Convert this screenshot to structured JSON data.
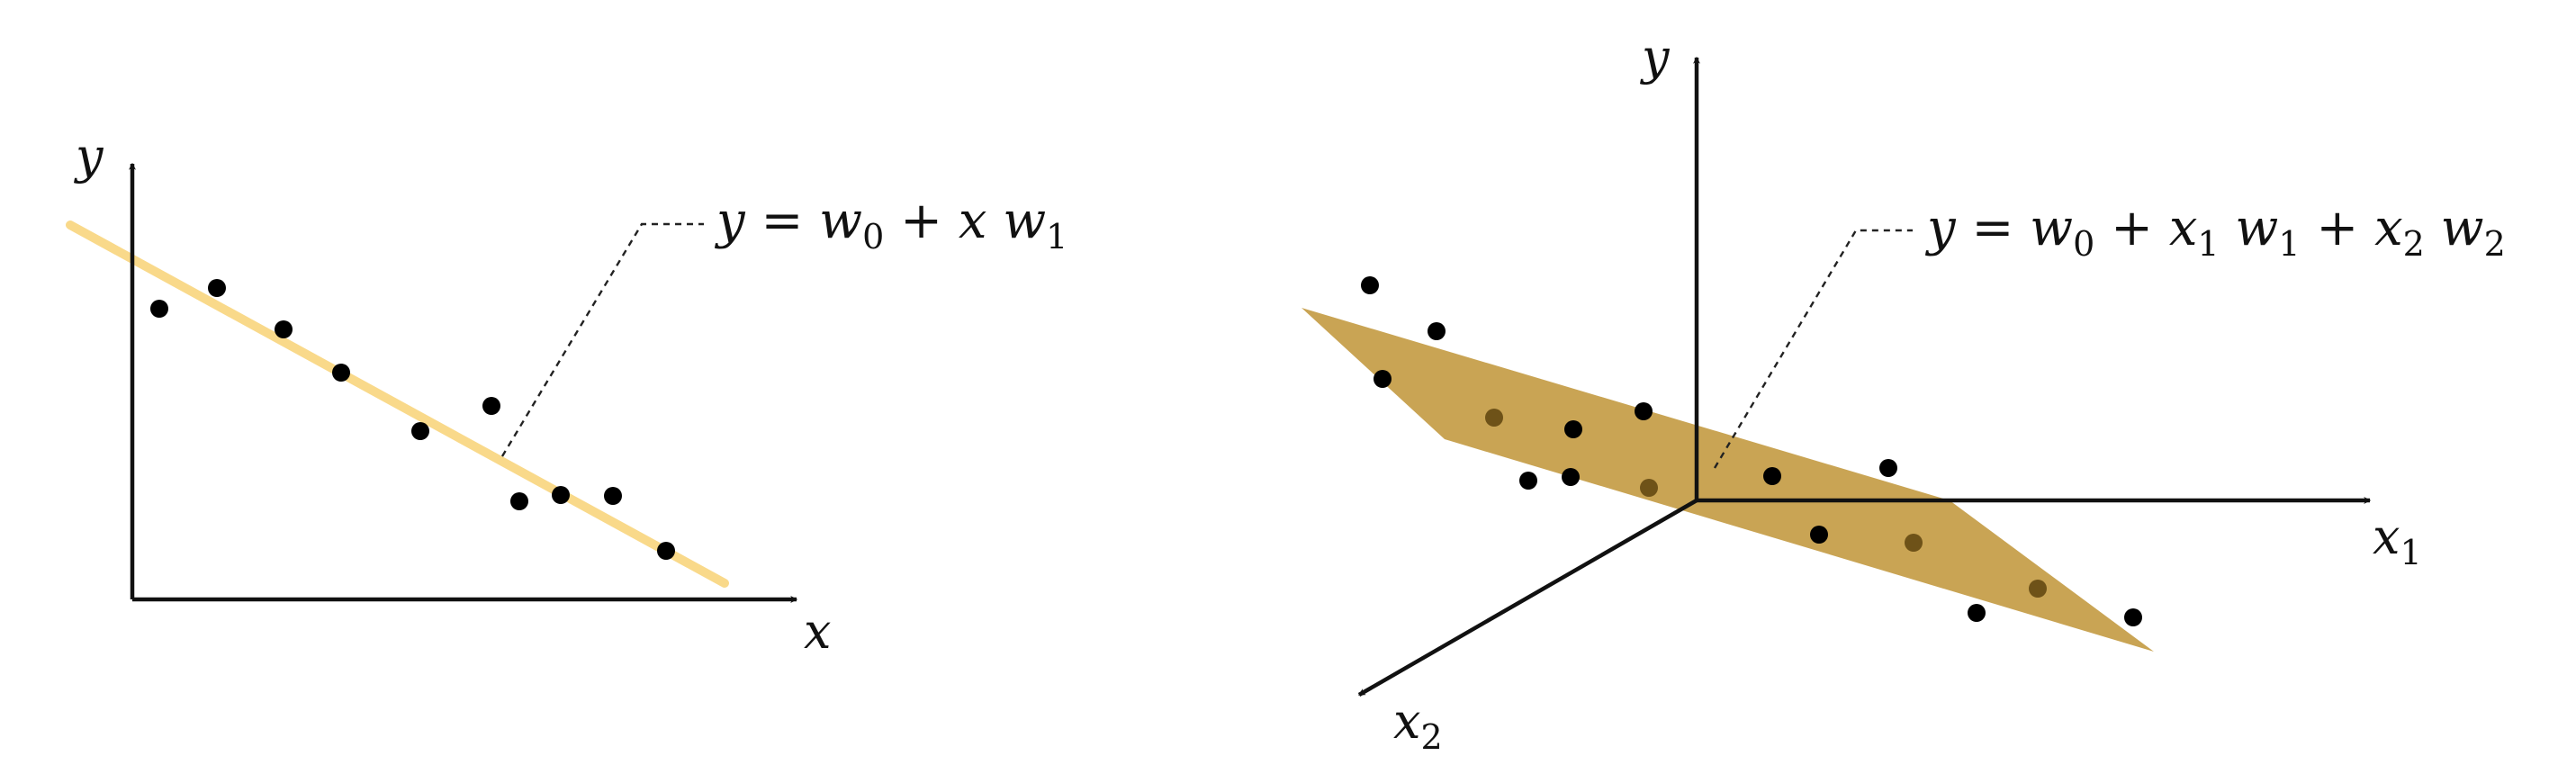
{
  "left_panel": {
    "y_axis_label": "y",
    "x_axis_label": "x",
    "equation": {
      "parts": [
        {
          "t": "y",
          "style": "math"
        },
        {
          "t": " = ",
          "style": "op"
        },
        {
          "t": "w",
          "style": "math"
        },
        {
          "t": "0",
          "style": "sub"
        },
        {
          "t": " + ",
          "style": "op"
        },
        {
          "t": "x",
          "style": "math"
        },
        {
          "t": " ",
          "style": "op"
        },
        {
          "t": "w",
          "style": "math"
        },
        {
          "t": "1",
          "style": "sub"
        }
      ]
    },
    "line_color": "#f9d98a",
    "point_color": "#000000",
    "point_count": 11
  },
  "right_panel": {
    "y_axis_label": "y",
    "x1_axis_label": "x1",
    "x1_main": "x",
    "x1_sub": "1",
    "x2_axis_label": "x2",
    "x2_main": "x",
    "x2_sub": "2",
    "equation": {
      "parts": [
        {
          "t": "y",
          "style": "math"
        },
        {
          "t": " = ",
          "style": "op"
        },
        {
          "t": "w",
          "style": "math"
        },
        {
          "t": "0",
          "style": "sub"
        },
        {
          "t": " + ",
          "style": "op"
        },
        {
          "t": "x",
          "style": "math"
        },
        {
          "t": "1",
          "style": "sub"
        },
        {
          "t": " ",
          "style": "op"
        },
        {
          "t": "w",
          "style": "math"
        },
        {
          "t": "1",
          "style": "sub"
        },
        {
          "t": " + ",
          "style": "op"
        },
        {
          "t": "x",
          "style": "math"
        },
        {
          "t": "2",
          "style": "sub"
        },
        {
          "t": " ",
          "style": "op"
        },
        {
          "t": "w",
          "style": "math"
        },
        {
          "t": "2",
          "style": "sub"
        }
      ]
    },
    "plane_color": "#c9a454",
    "point_color_above": "#000000",
    "point_color_below": "#6e5218",
    "point_count": 17
  }
}
